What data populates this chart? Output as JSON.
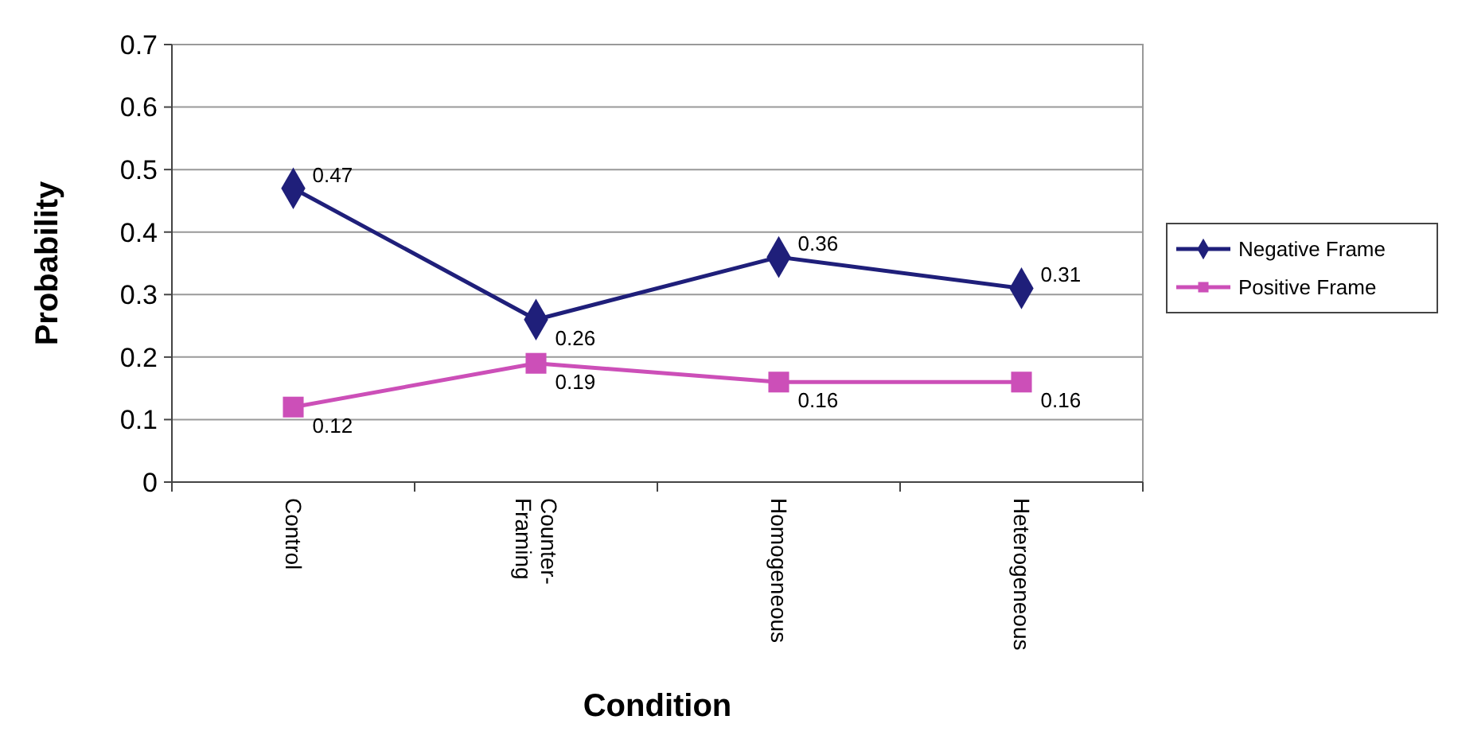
{
  "chart_data": {
    "type": "line",
    "xlabel": "Condition",
    "ylabel": "Probability",
    "categories": [
      "Control",
      "Counter-Framing",
      "Homogeneous",
      "Heterogeneous"
    ],
    "series": [
      {
        "name": "Negative Frame",
        "color": "#1f1f7a",
        "marker": "diamond",
        "values": [
          0.47,
          0.26,
          0.36,
          0.31
        ]
      },
      {
        "name": "Positive Frame",
        "color": "#cc4fb8",
        "marker": "square",
        "values": [
          0.12,
          0.19,
          0.16,
          0.16
        ]
      }
    ],
    "ylim": [
      0,
      0.7
    ],
    "yticks": [
      0,
      0.1,
      0.2,
      0.3,
      0.4,
      0.5,
      0.6,
      0.7
    ],
    "grid": "y",
    "legend": "right",
    "data_labels": true
  }
}
